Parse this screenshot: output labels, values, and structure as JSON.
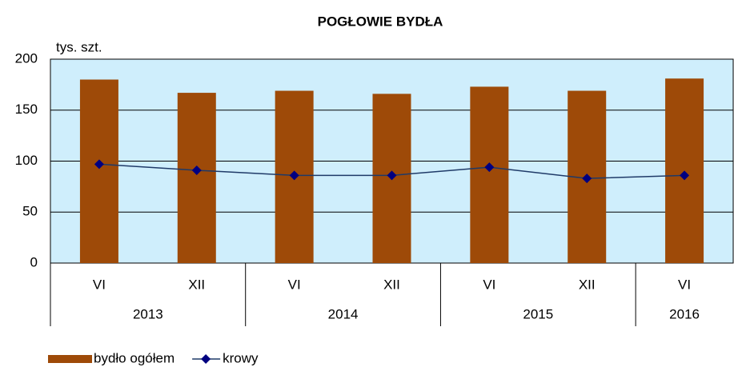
{
  "chart_data": {
    "type": "bar_line",
    "title": "POGŁOWIE BYDŁA",
    "y_label": "tys. szt.",
    "groups": [
      {
        "label": "2013",
        "categories": [
          "VI",
          "XII"
        ]
      },
      {
        "label": "2014",
        "categories": [
          "VI",
          "XII"
        ]
      },
      {
        "label": "2015",
        "categories": [
          "VI",
          "XII"
        ]
      },
      {
        "label": "2016",
        "categories": [
          "VI"
        ]
      }
    ],
    "series": [
      {
        "name": "bydło ogółem",
        "type": "bar",
        "color": "#9e4a08",
        "values": [
          180,
          167,
          169,
          166,
          173,
          169,
          181
        ]
      },
      {
        "name": "krowy",
        "type": "line",
        "color": "#1f3a68",
        "marker_color": "#000080",
        "values": [
          97,
          91,
          86,
          86,
          94,
          83,
          86
        ]
      }
    ],
    "ylim": [
      0,
      200
    ],
    "yticks": [
      0,
      50,
      100,
      150,
      200
    ],
    "grid": true,
    "plot_background": "#cfeefc"
  }
}
